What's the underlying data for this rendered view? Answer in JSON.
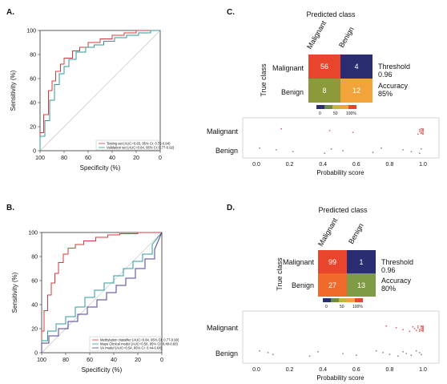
{
  "colors": {
    "red": "#d73a3a",
    "teal": "#2e9a9a",
    "purple": "#4f3f93",
    "gray": "#888888",
    "cm_dark": "#2b2d73",
    "cm_red": "#e8452c",
    "cm_olive": "#8e9a39",
    "cm_orange": "#f2a33a",
    "cm_redorange": "#f06a2b",
    "cm_olive2": "#7f9b46"
  },
  "chart_data": [
    {
      "id": "A",
      "panel_label": "A.",
      "type": "line",
      "xlabel": "Specificity (%)",
      "ylabel": "Sensitivity (%)",
      "xlim": [
        100,
        0
      ],
      "ylim": [
        0,
        100
      ],
      "xticks": [
        "100",
        "80",
        "60",
        "40",
        "20",
        "0"
      ],
      "yticks": [
        "0",
        "20",
        "40",
        "60",
        "80",
        "100"
      ],
      "diagonal": true,
      "legend_position": "bottom-right",
      "series": [
        {
          "name": "Testing set (AUC=0.83, 95% CI: 0.72-0.94)",
          "color": "#d73a3a",
          "x": [
            100,
            100,
            97,
            97,
            93,
            93,
            90,
            90,
            87,
            87,
            83,
            83,
            80,
            80,
            73,
            73,
            67,
            67,
            60,
            60,
            50,
            50,
            40,
            40,
            30,
            30,
            20,
            20,
            10,
            10,
            0
          ],
          "y": [
            0,
            15,
            15,
            30,
            30,
            50,
            50,
            58,
            58,
            66,
            66,
            72,
            72,
            77,
            77,
            83,
            83,
            86,
            86,
            90,
            90,
            93,
            93,
            96,
            96,
            98,
            98,
            100,
            100,
            100,
            100
          ]
        },
        {
          "name": "Validation set (AUC=0.84, 95% CI: 0.77-0.92)",
          "color": "#2e9a9a",
          "x": [
            100,
            100,
            96,
            96,
            92,
            92,
            88,
            88,
            84,
            84,
            80,
            80,
            76,
            76,
            70,
            70,
            62,
            62,
            55,
            55,
            47,
            47,
            38,
            38,
            28,
            28,
            18,
            18,
            8,
            8,
            0
          ],
          "y": [
            0,
            12,
            12,
            25,
            25,
            42,
            42,
            55,
            55,
            64,
            64,
            70,
            70,
            76,
            76,
            82,
            82,
            86,
            86,
            88,
            88,
            91,
            91,
            94,
            94,
            96,
            96,
            98,
            98,
            100,
            100
          ]
        }
      ]
    },
    {
      "id": "B",
      "panel_label": "B.",
      "type": "line",
      "xlabel": "Specificity (%)",
      "ylabel": "Sensitivity (%)",
      "xlim": [
        100,
        0
      ],
      "ylim": [
        0,
        100
      ],
      "xticks": [
        "100",
        "80",
        "60",
        "40",
        "20",
        "0"
      ],
      "yticks": [
        "0",
        "20",
        "40",
        "60",
        "80",
        "100"
      ],
      "diagonal": true,
      "legend_position": "bottom-right",
      "series": [
        {
          "name": "Methylation classifier (AUC=0.84, 95% CI: 0.77-0.90)",
          "color": "#d73a3a",
          "x": [
            100,
            100,
            98,
            98,
            95,
            95,
            92,
            92,
            89,
            89,
            86,
            86,
            82,
            82,
            78,
            78,
            72,
            72,
            65,
            65,
            55,
            55,
            45,
            45,
            35,
            35,
            20,
            20,
            5,
            5,
            0
          ],
          "y": [
            0,
            18,
            18,
            35,
            35,
            48,
            48,
            58,
            58,
            66,
            66,
            75,
            75,
            82,
            82,
            87,
            87,
            90,
            90,
            93,
            93,
            96,
            96,
            98,
            98,
            99,
            99,
            100,
            100,
            100,
            100
          ]
        },
        {
          "name": "Mayo Clinical model (AUC=0.56, 95% CI: 0.48-0.68)",
          "color": "#2e9a9a",
          "x": [
            100,
            100,
            95,
            95,
            88,
            88,
            80,
            80,
            72,
            72,
            64,
            64,
            56,
            56,
            48,
            48,
            40,
            40,
            32,
            32,
            24,
            24,
            16,
            16,
            8,
            8,
            0
          ],
          "y": [
            0,
            10,
            10,
            18,
            18,
            24,
            24,
            30,
            30,
            38,
            38,
            46,
            46,
            52,
            52,
            58,
            58,
            64,
            64,
            70,
            70,
            76,
            76,
            82,
            82,
            90,
            100
          ]
        },
        {
          "name": "VA model (AUC=0.54, 95% CI: 0.44-0.64)",
          "color": "#4f3f93",
          "x": [
            100,
            100,
            94,
            94,
            86,
            86,
            78,
            78,
            70,
            70,
            62,
            62,
            54,
            54,
            46,
            46,
            38,
            38,
            30,
            30,
            22,
            22,
            14,
            14,
            6,
            6,
            0
          ],
          "y": [
            0,
            8,
            8,
            14,
            14,
            20,
            20,
            26,
            26,
            32,
            32,
            38,
            38,
            44,
            44,
            50,
            50,
            56,
            56,
            62,
            62,
            70,
            70,
            78,
            78,
            86,
            100
          ]
        }
      ]
    },
    {
      "id": "C",
      "panel_label": "C.",
      "type": "heatmap",
      "title": "Predicted class",
      "x_categories": [
        "Malignant",
        "Benign"
      ],
      "y_categories": [
        "Malignant",
        "Benign"
      ],
      "ylabel": "True class",
      "matrix": [
        [
          56,
          4
        ],
        [
          8,
          12
        ]
      ],
      "cell_colors": [
        [
          "#e8452c",
          "#2b2d73"
        ],
        [
          "#8e9a39",
          "#f2a33a"
        ]
      ],
      "threshold_label": "Threshold",
      "threshold_value": "0.96",
      "accuracy_label": "Accuracy",
      "accuracy_value": "85%",
      "colorbar_ticks": [
        "0",
        "50",
        "100%"
      ]
    },
    {
      "id": "C_strip",
      "type": "scatter",
      "xlabel": "Probability score",
      "xlim": [
        0,
        1
      ],
      "xticks": [
        "0.0",
        "0.2",
        "0.4",
        "0.6",
        "0.8",
        "1.0"
      ],
      "categories": [
        "Malignant",
        "Benign"
      ],
      "series": [
        {
          "name": "Malignant",
          "color": "#e46060",
          "values": [
            0.15,
            0.44,
            0.58,
            0.97,
            0.98,
            0.98,
            0.99,
            0.99,
            0.99,
            0.99,
            1.0,
            1.0,
            1.0,
            1.0,
            1.0,
            1.0
          ]
        },
        {
          "name": "Benign",
          "color": "#888888",
          "values": [
            0.02,
            0.12,
            0.22,
            0.41,
            0.45,
            0.52,
            0.7,
            0.75,
            0.88,
            0.93,
            0.98,
            0.99
          ]
        }
      ]
    },
    {
      "id": "D",
      "panel_label": "D.",
      "type": "heatmap",
      "title": "Predicted class",
      "x_categories": [
        "Malignant",
        "Benign"
      ],
      "y_categories": [
        "Malignant",
        "Benign"
      ],
      "ylabel": "True class",
      "matrix": [
        [
          99,
          1
        ],
        [
          27,
          13
        ]
      ],
      "cell_colors": [
        [
          "#e8452c",
          "#2b2d73"
        ],
        [
          "#f06a2b",
          "#7f9b46"
        ]
      ],
      "threshold_label": "Threshold",
      "threshold_value": "0.96",
      "accuracy_label": "Accuracy",
      "accuracy_value": "80%",
      "colorbar_ticks": [
        "0",
        "50",
        "100%"
      ]
    },
    {
      "id": "D_strip",
      "type": "scatter",
      "xlabel": "Probability score",
      "xlim": [
        0,
        1
      ],
      "xticks": [
        "0.0",
        "0.2",
        "0.4",
        "0.6",
        "0.8",
        "1.0"
      ],
      "categories": [
        "Malignant",
        "Benign"
      ],
      "series": [
        {
          "name": "Malignant",
          "color": "#e46060",
          "values": [
            0.78,
            0.84,
            0.88,
            0.92,
            0.94,
            0.95,
            0.96,
            0.97,
            0.97,
            0.98,
            0.98,
            0.99,
            0.99,
            0.99,
            0.99,
            1.0,
            1.0,
            1.0,
            1.0,
            1.0,
            1.0,
            1.0,
            1.0
          ]
        },
        {
          "name": "Benign",
          "color": "#888888",
          "values": [
            0.02,
            0.07,
            0.1,
            0.32,
            0.37,
            0.52,
            0.6,
            0.72,
            0.76,
            0.8,
            0.85,
            0.88,
            0.9,
            0.93,
            0.96,
            0.98,
            0.99
          ]
        }
      ]
    }
  ]
}
